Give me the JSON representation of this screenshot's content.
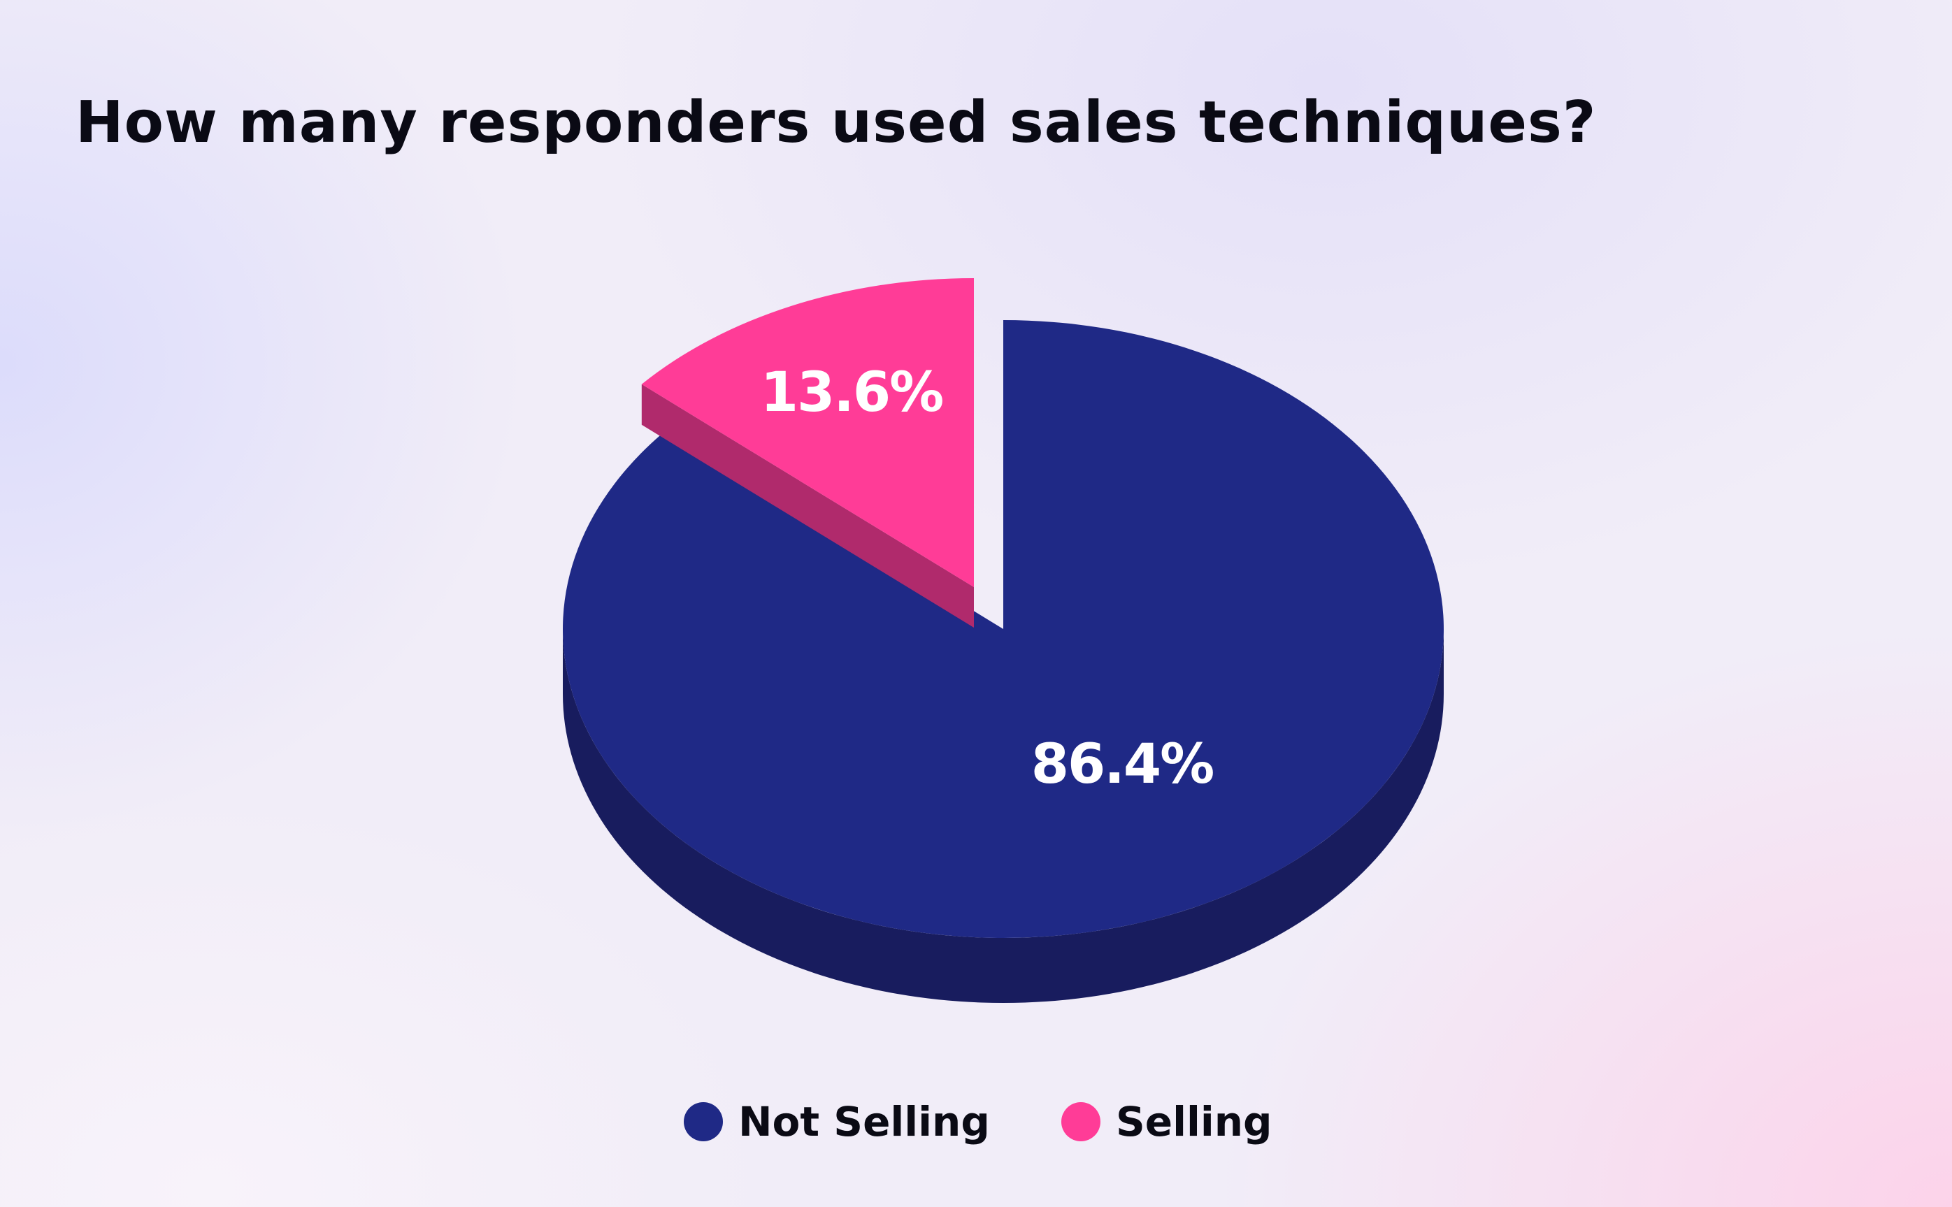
{
  "chart_data": {
    "type": "pie",
    "title": "How many responders used sales techniques?",
    "slices": [
      {
        "name": "Not Selling",
        "value": 86.4,
        "label": "86.4%",
        "color": "#1f2986",
        "side_color": "#181c5e"
      },
      {
        "name": "Selling",
        "value": 13.6,
        "label": "13.6%",
        "color": "#ff3c97",
        "side_color": "#b02a6c",
        "exploded": true
      }
    ],
    "legend_placement": "bottom",
    "style": "3d"
  }
}
